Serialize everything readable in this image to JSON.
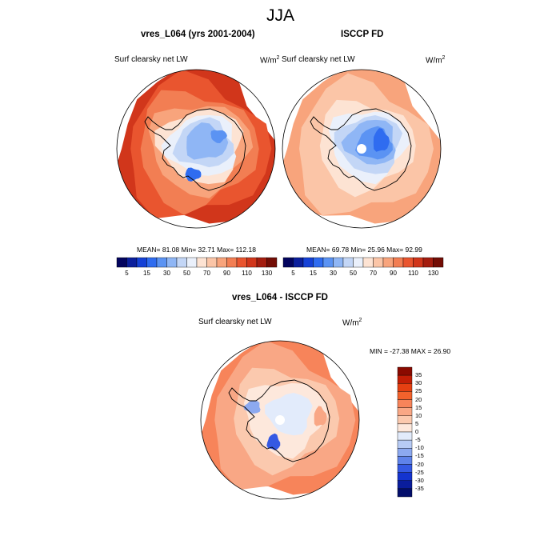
{
  "season": "JJA",
  "panels": [
    {
      "title": "vres_L064 (yrs 2001-2004)",
      "variable": "Surf clearsky net LW",
      "units": "W/m",
      "units_exp": "2",
      "stats": "MEAN=  81.08  Min=  32.71  Max= 112.18",
      "pole_gap": false,
      "colorbar_ticks": [
        "5",
        "15",
        "30",
        "50",
        "70",
        "90",
        "110",
        "130"
      ]
    },
    {
      "title": "ISCCP FD",
      "variable": "Surf clearsky net LW",
      "units": "W/m",
      "units_exp": "2",
      "stats": "MEAN=  69.78  Min=  25.96  Max=  92.99",
      "pole_gap": true,
      "colorbar_ticks": [
        "5",
        "15",
        "30",
        "50",
        "70",
        "90",
        "110",
        "130"
      ]
    }
  ],
  "diff": {
    "title": "vres_L064 - ISCCP FD",
    "variable": "Surf clearsky net LW",
    "units": "W/m",
    "units_exp": "2",
    "minmax": "MIN = -27.38 MAX =  26.90",
    "colorbar_ticks": [
      "35",
      "30",
      "25",
      "20",
      "15",
      "10",
      "5",
      "0",
      "-5",
      "-10",
      "-15",
      "-20",
      "-25",
      "-30",
      "-35"
    ]
  },
  "colors": {
    "abs_scale": [
      "#03045e",
      "#0b1f9c",
      "#1541d6",
      "#2f6cf0",
      "#5b93f3",
      "#8fb6f5",
      "#c3d6f6",
      "#eaf0fb",
      "#fde3d3",
      "#fbc5a7",
      "#f8a47c",
      "#f27e53",
      "#e9552f",
      "#d1361b",
      "#a41d0f",
      "#730d05"
    ],
    "diff_scale": [
      "#8a0a00",
      "#c21e06",
      "#e54012",
      "#f3622c",
      "#f7845a",
      "#f9a785",
      "#fbc9ae",
      "#fde8dc",
      "#e2ebfb",
      "#b7cbf5",
      "#8ca9f0",
      "#5f83ea",
      "#3559e3",
      "#1434cf",
      "#0a1d9c",
      "#030e6b"
    ],
    "coast": "#000000"
  }
}
